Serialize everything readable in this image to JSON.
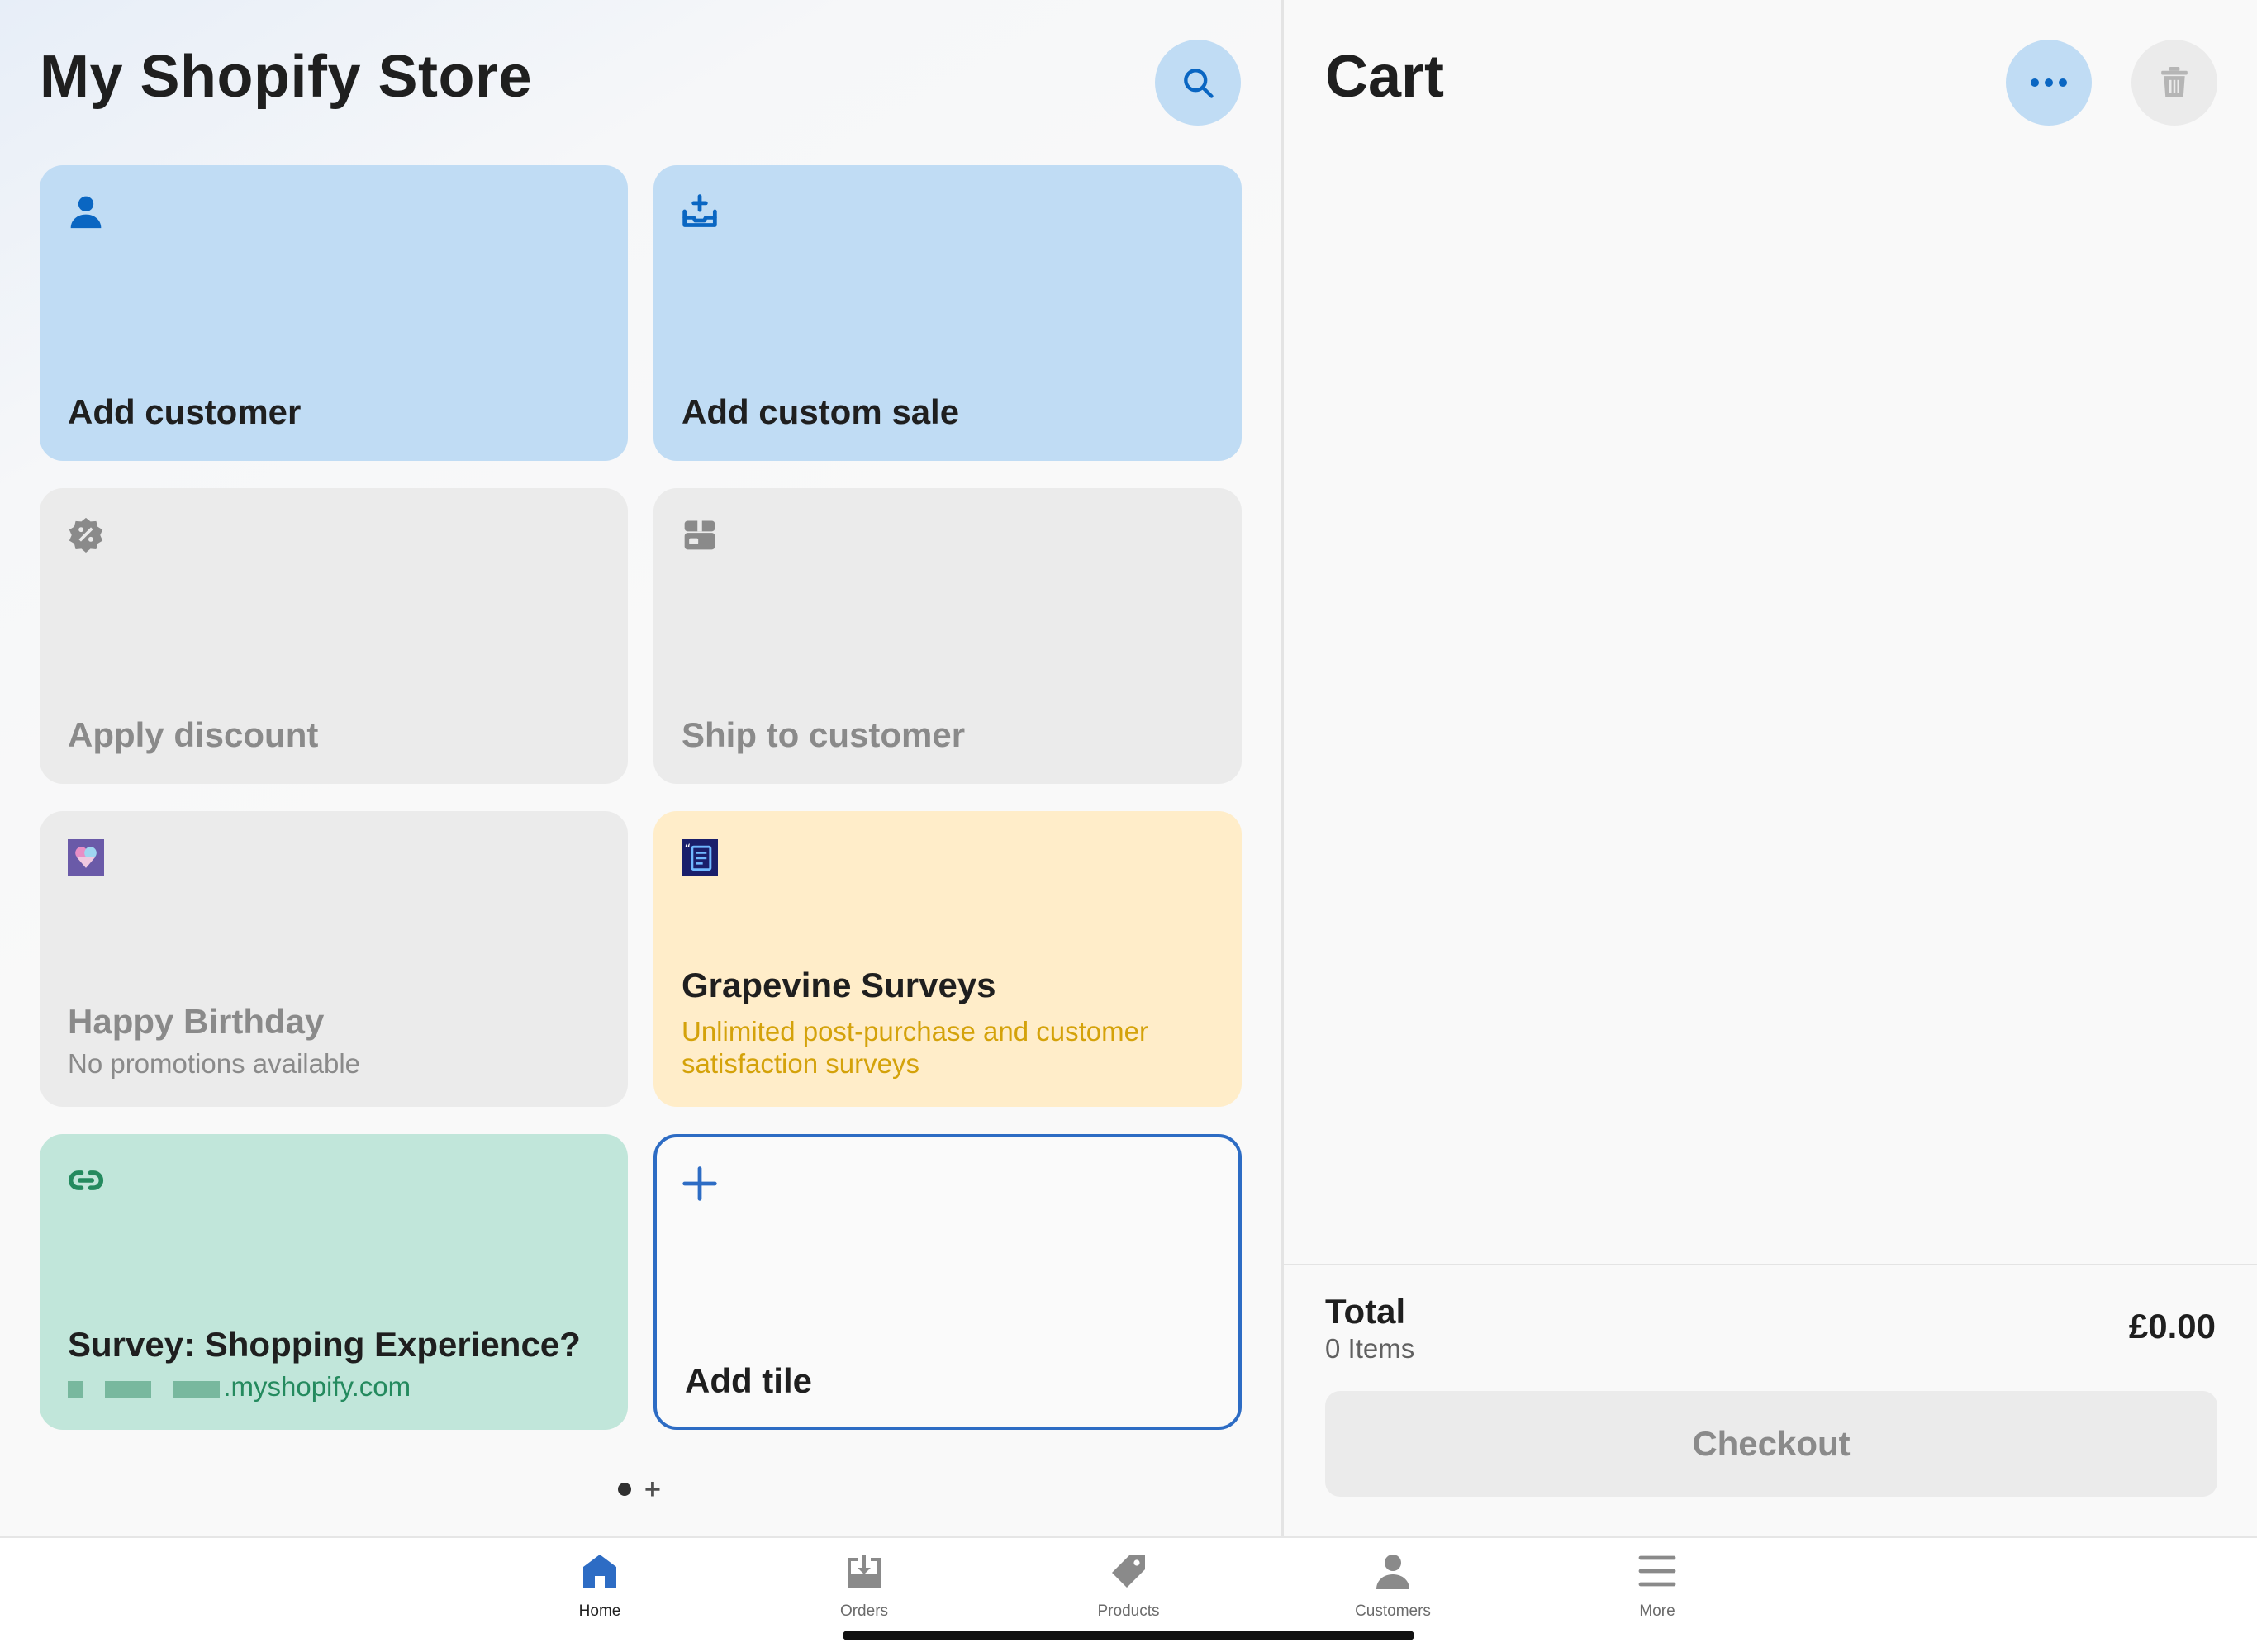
{
  "header": {
    "store_title": "My Shopify Store",
    "search_icon": "search-icon"
  },
  "tiles": [
    {
      "label": "Add customer",
      "icon": "person-icon",
      "style": "blue"
    },
    {
      "label": "Add custom sale",
      "icon": "tray-plus-icon",
      "style": "blue"
    },
    {
      "label": "Apply discount",
      "icon": "discount-badge-icon",
      "style": "gray"
    },
    {
      "label": "Ship to customer",
      "icon": "package-icon",
      "style": "gray"
    },
    {
      "label": "Happy Birthday",
      "subtitle": "No promotions available",
      "icon": "app-thumbnail-icon",
      "style": "gray"
    },
    {
      "label": "Grapevine Surveys",
      "subtitle": "Unlimited post-purchase and customer satisfaction surveys",
      "icon": "app-thumbnail-icon",
      "style": "yellow"
    },
    {
      "label": "Survey: Shopping Experience?",
      "subtitle": ".myshopify.com",
      "icon": "link-icon",
      "style": "green"
    },
    {
      "label": "Add tile",
      "icon": "plus-icon",
      "style": "outline"
    }
  ],
  "pager": {
    "plus": "+"
  },
  "cart": {
    "title": "Cart",
    "more_icon": "ellipsis-icon",
    "trash_icon": "trash-icon",
    "total_label": "Total",
    "items_count": "0 Items",
    "total_value": "£0.00",
    "checkout_label": "Checkout"
  },
  "tab_bar": {
    "home": "Home",
    "orders": "Orders",
    "products": "Products",
    "customers": "Customers",
    "more": "More"
  },
  "colors": {
    "accent": "#2d6cc4",
    "tile_blue": "#c0dcf4",
    "tile_gray": "#ebebeb",
    "tile_yellow": "#ffedc9",
    "tile_green": "#c1e6da",
    "yellow_text": "#d4a20a",
    "green_text": "#248a5e"
  }
}
